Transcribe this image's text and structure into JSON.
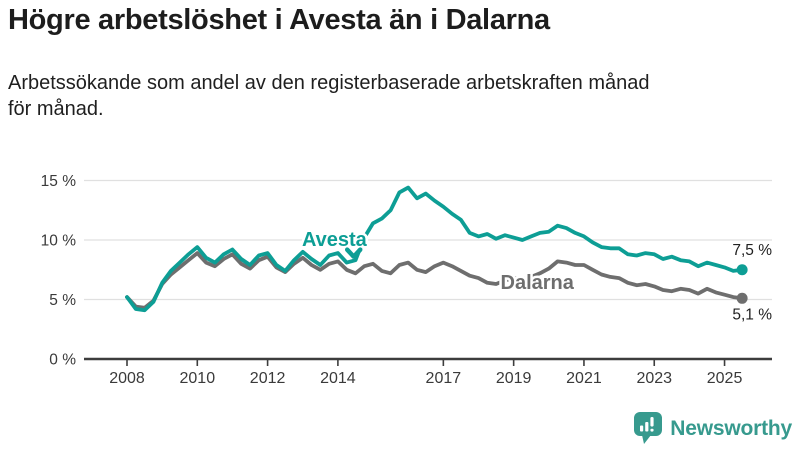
{
  "header": {
    "title": "Högre arbetslöshet i Avesta än i Dalarna",
    "subtitle_line1": "Arbetssökande som andel av den registerbaserade arbetskraften månad",
    "subtitle_line2": "för månad."
  },
  "footer": {
    "brand": "Newsworthy",
    "logo_icon": "bar-chart-speech-bubble-icon"
  },
  "colors": {
    "avesta": "#0d9e95",
    "dalarna": "#6e6e6e",
    "grid": "#e0e0e0",
    "axis": "#3d3d3d",
    "title_text": "#1d1d1d",
    "tick_text": "#3a3a3a",
    "end_label_text": "#222222",
    "brand": "#379a8e",
    "background": "#ffffff"
  },
  "chart_data": {
    "type": "line",
    "title": "Högre arbetslöshet i Avesta än i Dalarna",
    "subtitle": "Arbetssökande som andel av den registerbaserade arbetskraften månad för månad.",
    "unit": "%",
    "grid": true,
    "legend_position": "inline-annotations",
    "xlim": [
      2007.8,
      2026.3
    ],
    "ylim": [
      0,
      15
    ],
    "x_start": 2008.0,
    "x_step": 0.25,
    "x_ticks": [
      {
        "value": 2008,
        "label": "2008"
      },
      {
        "value": 2010,
        "label": "2010"
      },
      {
        "value": 2012,
        "label": "2012"
      },
      {
        "value": 2014,
        "label": "2014"
      },
      {
        "value": 2017,
        "label": "2017"
      },
      {
        "value": 2019,
        "label": "2019"
      },
      {
        "value": 2021,
        "label": "2021"
      },
      {
        "value": 2023,
        "label": "2023"
      },
      {
        "value": 2025,
        "label": "2025"
      }
    ],
    "y_ticks": [
      {
        "value": 0,
        "label": "0 %"
      },
      {
        "value": 5,
        "label": "5 %"
      },
      {
        "value": 10,
        "label": "10 %"
      },
      {
        "value": 15,
        "label": "15 %"
      }
    ],
    "series": [
      {
        "name": "Dalarna",
        "color": "#6e6e6e",
        "end_label": "5,1 %",
        "values": [
          5.2,
          4.4,
          4.3,
          4.9,
          6.3,
          7.1,
          7.7,
          8.3,
          8.9,
          8.1,
          7.8,
          8.4,
          8.8,
          8.0,
          7.6,
          8.3,
          8.6,
          7.7,
          7.3,
          8.0,
          8.5,
          7.9,
          7.5,
          8.0,
          8.2,
          7.5,
          7.2,
          7.8,
          8.0,
          7.4,
          7.2,
          7.9,
          8.1,
          7.5,
          7.3,
          7.8,
          8.1,
          7.8,
          7.4,
          7.0,
          6.8,
          6.4,
          6.3,
          6.6,
          6.8,
          6.7,
          6.9,
          7.2,
          7.6,
          8.2,
          8.1,
          7.9,
          7.9,
          7.5,
          7.1,
          6.9,
          6.8,
          6.4,
          6.2,
          6.3,
          6.1,
          5.8,
          5.7,
          5.9,
          5.8,
          5.5,
          5.9,
          5.6,
          5.4,
          5.2,
          5.1
        ]
      },
      {
        "name": "Avesta",
        "color": "#0d9e95",
        "end_label": "7,5 %",
        "values": [
          5.2,
          4.2,
          4.1,
          4.8,
          6.4,
          7.4,
          8.1,
          8.8,
          9.4,
          8.5,
          8.1,
          8.8,
          9.2,
          8.4,
          7.9,
          8.7,
          8.9,
          7.9,
          7.4,
          8.3,
          9.0,
          8.4,
          7.9,
          8.7,
          8.9,
          8.1,
          8.3,
          10.2,
          11.4,
          11.8,
          12.5,
          14.0,
          14.4,
          13.5,
          13.9,
          13.3,
          12.8,
          12.2,
          11.7,
          10.6,
          10.3,
          10.5,
          10.1,
          10.4,
          10.2,
          10.0,
          10.3,
          10.6,
          10.7,
          11.2,
          11.0,
          10.6,
          10.3,
          9.8,
          9.4,
          9.3,
          9.3,
          8.8,
          8.7,
          8.9,
          8.8,
          8.4,
          8.6,
          8.3,
          8.2,
          7.8,
          8.1,
          7.9,
          7.7,
          7.4,
          7.5
        ]
      }
    ],
    "annotations": {
      "avesta_label": {
        "text": "Avesta",
        "x": 2013.9,
        "y": 10.1,
        "arrow_tip_x": 2014.45,
        "arrow_tip_y": 8.6
      },
      "dalarna_label": {
        "text": "Dalarna",
        "x": 2019.67,
        "y": 6.45
      }
    }
  }
}
